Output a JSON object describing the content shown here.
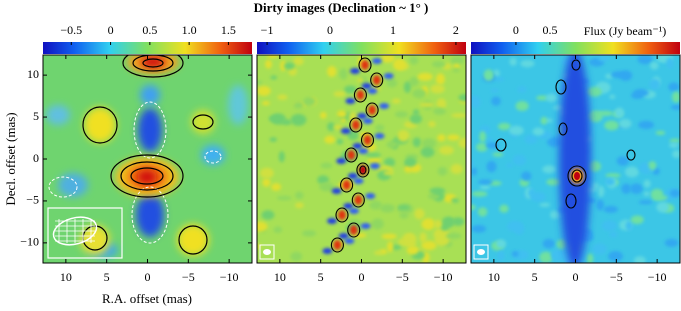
{
  "title": "Dirty images (Declination ~ 1° )",
  "x_label": "R.A. offset (mas)",
  "y_label": "Decl. offset (mas)",
  "colorbar_label": "Flux (Jy beam⁻¹)",
  "chart_data": [
    {
      "type": "heatmap",
      "xlim": [
        12.8,
        -12.8
      ],
      "ylim": [
        -12.4,
        12.4
      ],
      "xticks": [
        10,
        5,
        0,
        {
          "value": -5,
          "label": "−5"
        },
        {
          "value": -10,
          "label": "−10"
        }
      ],
      "yticks": [
        {
          "value": -10,
          "label": "−10"
        },
        {
          "value": -5,
          "label": "−5"
        },
        0,
        5,
        10
      ],
      "clim": [
        -0.86,
        1.8
      ],
      "cticks": [
        {
          "value": -0.5,
          "label": "−0.5"
        },
        0,
        0.5,
        {
          "value": 1,
          "label": "1.0"
        },
        1.5
      ]
    },
    {
      "type": "heatmap",
      "xlim": [
        12.8,
        -12.8
      ],
      "ylim": [
        -12.4,
        12.4
      ],
      "xticks": [
        10,
        5,
        0,
        {
          "value": -5,
          "label": "−5"
        },
        {
          "value": -10,
          "label": "−10"
        }
      ],
      "clim": [
        -1.16,
        2.16
      ],
      "cticks": [
        {
          "value": -1,
          "label": "−1"
        },
        0,
        1,
        2
      ]
    },
    {
      "type": "heatmap",
      "xlim": [
        12.8,
        -12.8
      ],
      "ylim": [
        -12.4,
        12.4
      ],
      "xticks": [
        10,
        5,
        0,
        {
          "value": -5,
          "label": "−5"
        },
        {
          "value": -10,
          "label": "−10"
        }
      ],
      "clim": [
        -0.66,
        2.41
      ],
      "cticks": [
        0,
        0.5
      ]
    }
  ]
}
